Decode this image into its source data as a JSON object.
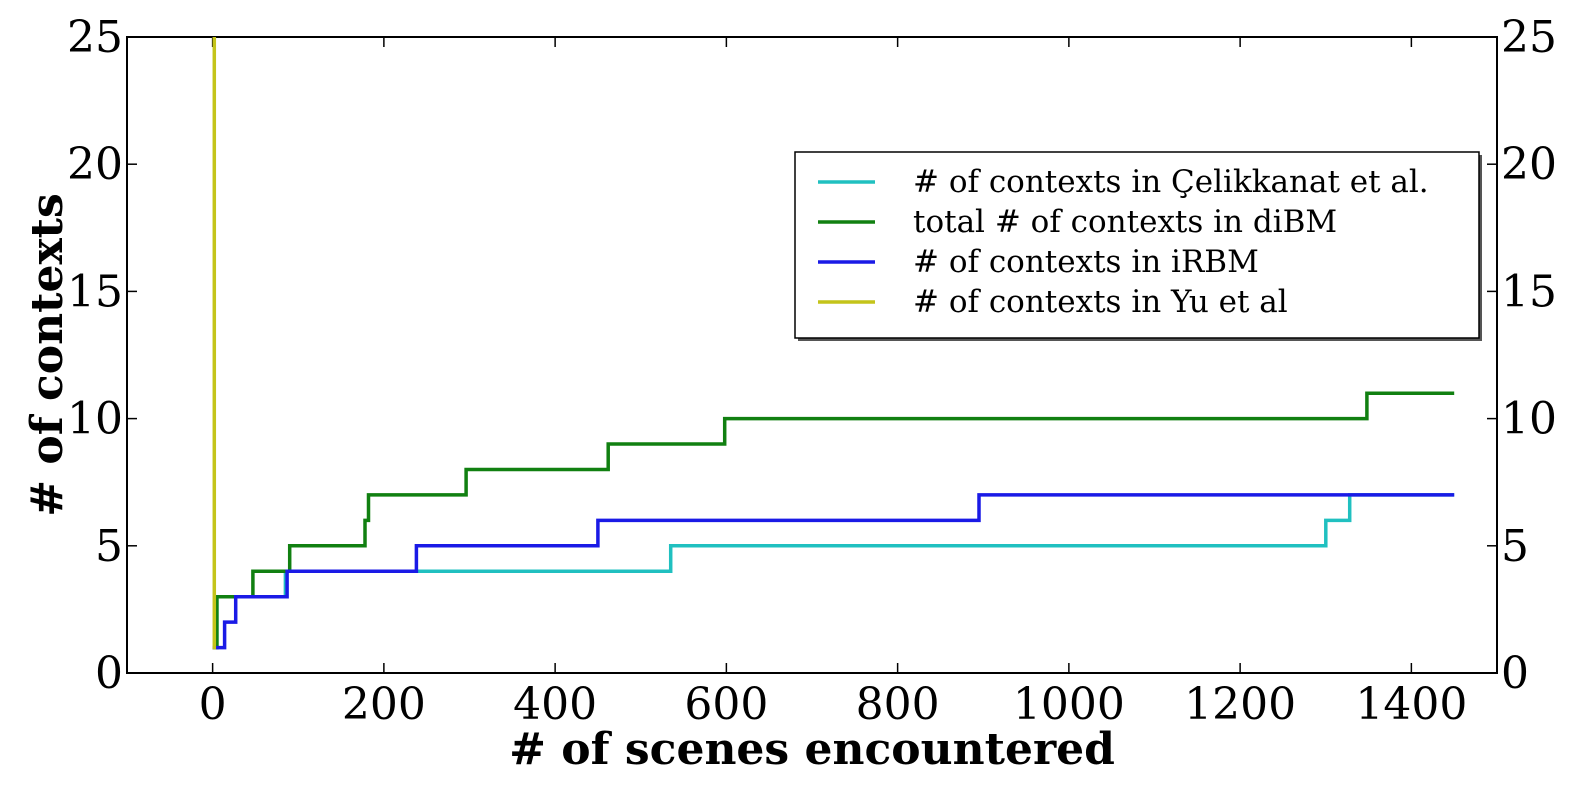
{
  "chart_data": {
    "type": "line",
    "xlabel": "# of scenes encountered",
    "ylabel": "# of contexts",
    "xlim": [
      -100,
      1500
    ],
    "ylim": [
      0,
      25
    ],
    "xticks": [
      0,
      200,
      400,
      600,
      800,
      1000,
      1200,
      1400
    ],
    "yticks": [
      0,
      5,
      10,
      15,
      20,
      25
    ],
    "right_y_axis_ticks": true,
    "grid": false,
    "legend_position": "upper-right",
    "series": [
      {
        "name": "# of contexts in Çelikkanat et al.",
        "color": "#20c0c0",
        "steps": [
          [
            0,
            1
          ],
          [
            5,
            3
          ],
          [
            85,
            4
          ],
          [
            535,
            5
          ],
          [
            1300,
            6
          ],
          [
            1328,
            7
          ],
          [
            1450,
            7
          ]
        ]
      },
      {
        "name": "total # of contexts in diBM",
        "color": "#118011",
        "steps": [
          [
            0,
            1
          ],
          [
            5,
            3
          ],
          [
            47,
            4
          ],
          [
            90,
            5
          ],
          [
            178,
            6
          ],
          [
            182,
            7
          ],
          [
            296,
            8
          ],
          [
            462,
            9
          ],
          [
            598,
            10
          ],
          [
            1348,
            11
          ],
          [
            1450,
            11
          ]
        ]
      },
      {
        "name": "# of contexts in iRBM",
        "color": "#1a1ae6",
        "steps": [
          [
            0,
            1
          ],
          [
            14,
            2
          ],
          [
            27,
            3
          ],
          [
            87,
            4
          ],
          [
            238,
            5
          ],
          [
            450,
            6
          ],
          [
            895,
            7
          ],
          [
            1450,
            7
          ]
        ]
      },
      {
        "name": "# of contexts in Yu et al",
        "color": "#c4c41a",
        "steps": [
          [
            0,
            1
          ],
          [
            2,
            25
          ]
        ]
      }
    ]
  }
}
